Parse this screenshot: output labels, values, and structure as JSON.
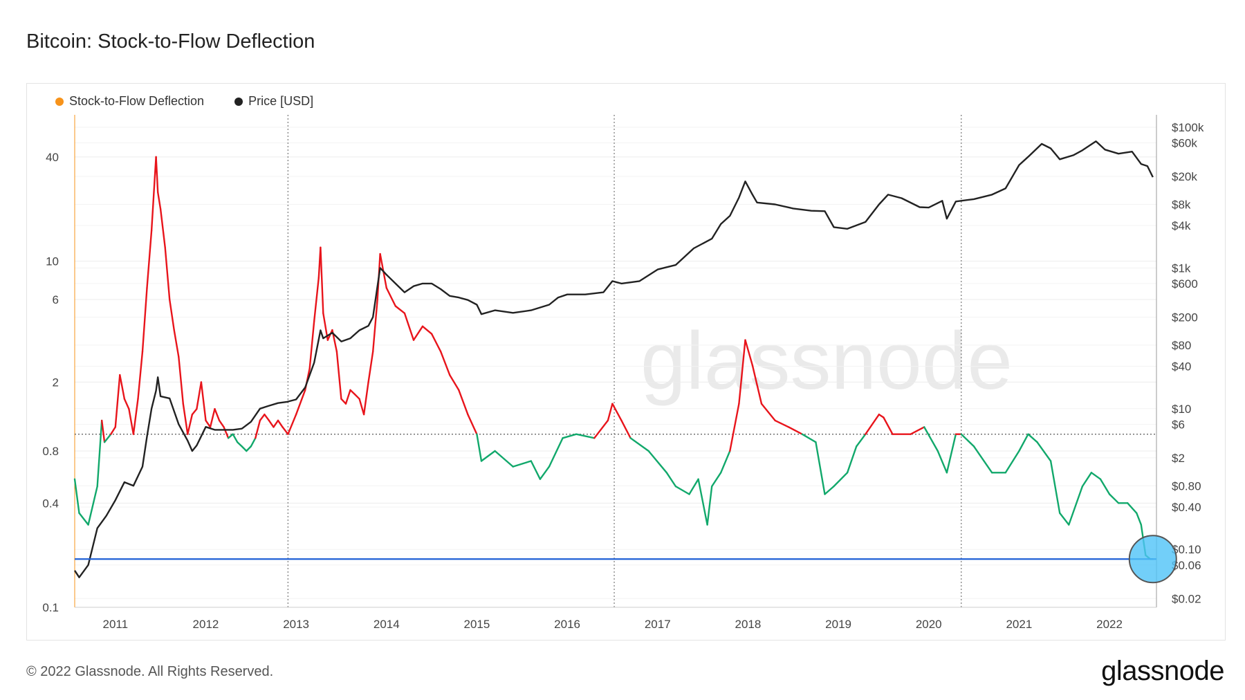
{
  "title": "Bitcoin: Stock-to-Flow Deflection",
  "footer": "© 2022 Glassnode. All Rights Reserved.",
  "brand": "glassnode",
  "watermark": "glassnode",
  "colors": {
    "deflection_above": "#e8141b",
    "deflection_below": "#11a86b",
    "price": "#222222",
    "legend_deflection": "#f7931a",
    "baseline": "#1f5fd6",
    "highlight": "#4fc3f7"
  },
  "chart_data": {
    "type": "line",
    "title": "Bitcoin: Stock-to-Flow Deflection",
    "legend": [
      "Stock-to-Flow Deflection",
      "Price [USD]"
    ],
    "legend_placement": "top-left",
    "x_ticks": [
      "2011",
      "2012",
      "2013",
      "2014",
      "2015",
      "2016",
      "2017",
      "2018",
      "2019",
      "2020",
      "2021",
      "2022"
    ],
    "x_range": [
      2010.55,
      2022.52
    ],
    "y_left": {
      "scale": "log",
      "range": [
        0.1,
        70
      ],
      "ticks": [
        "0.1",
        "0.4",
        "0.8",
        "2",
        "6",
        "10",
        "40"
      ]
    },
    "y_right": {
      "scale": "log",
      "range": [
        0.015,
        150000
      ],
      "ticks": [
        "$0.02",
        "$0.06",
        "$0.10",
        "$0.40",
        "$0.80",
        "$2",
        "$6",
        "$10",
        "$40",
        "$80",
        "$200",
        "$600",
        "$1k",
        "$4k",
        "$8k",
        "$20k",
        "$60k",
        "$100k"
      ]
    },
    "reference_line": 1,
    "baseline_value": 0.19,
    "halving_dates": [
      2012.91,
      2016.52,
      2020.36
    ],
    "highlight_point": {
      "x": 2022.48,
      "y": 0.19
    },
    "series": [
      {
        "name": "Stock-to-Flow Deflection",
        "axis": "left",
        "x": [
          2010.55,
          2010.6,
          2010.7,
          2010.8,
          2010.85,
          2010.88,
          2010.95,
          2011.0,
          2011.05,
          2011.1,
          2011.15,
          2011.2,
          2011.25,
          2011.3,
          2011.35,
          2011.4,
          2011.45,
          2011.47,
          2011.5,
          2011.55,
          2011.6,
          2011.65,
          2011.7,
          2011.75,
          2011.8,
          2011.85,
          2011.9,
          2011.95,
          2012.0,
          2012.05,
          2012.1,
          2012.15,
          2012.2,
          2012.25,
          2012.3,
          2012.35,
          2012.4,
          2012.45,
          2012.5,
          2012.55,
          2012.6,
          2012.65,
          2012.7,
          2012.75,
          2012.8,
          2012.85,
          2012.91,
          2013.0,
          2013.1,
          2013.15,
          2013.2,
          2013.25,
          2013.27,
          2013.3,
          2013.35,
          2013.4,
          2013.45,
          2013.5,
          2013.55,
          2013.6,
          2013.65,
          2013.7,
          2013.75,
          2013.8,
          2013.85,
          2013.9,
          2013.93,
          2014.0,
          2014.1,
          2014.2,
          2014.3,
          2014.4,
          2014.5,
          2014.6,
          2014.7,
          2014.8,
          2014.9,
          2015.0,
          2015.05,
          2015.2,
          2015.4,
          2015.6,
          2015.7,
          2015.8,
          2015.95,
          2016.1,
          2016.3,
          2016.45,
          2016.5,
          2016.6,
          2016.7,
          2016.9,
          2017.1,
          2017.2,
          2017.35,
          2017.45,
          2017.55,
          2017.6,
          2017.7,
          2017.8,
          2017.9,
          2017.97,
          2018.05,
          2018.15,
          2018.3,
          2018.45,
          2018.6,
          2018.75,
          2018.85,
          2018.95,
          2019.1,
          2019.2,
          2019.3,
          2019.45,
          2019.5,
          2019.6,
          2019.8,
          2019.95,
          2020.1,
          2020.2,
          2020.3,
          2020.36,
          2020.5,
          2020.7,
          2020.85,
          2021.0,
          2021.1,
          2021.2,
          2021.35,
          2021.45,
          2021.55,
          2021.7,
          2021.8,
          2021.9,
          2022.0,
          2022.1,
          2022.2,
          2022.3,
          2022.35,
          2022.4,
          2022.45,
          2022.48
        ],
        "values": [
          0.55,
          0.35,
          0.3,
          0.5,
          1.2,
          0.9,
          1.0,
          1.1,
          2.2,
          1.6,
          1.4,
          1.0,
          1.6,
          3.0,
          7.0,
          15.0,
          40.0,
          25.0,
          20.0,
          12.0,
          6.0,
          4.0,
          2.8,
          1.5,
          1.0,
          1.3,
          1.4,
          2.0,
          1.2,
          1.1,
          1.4,
          1.2,
          1.1,
          0.95,
          1.0,
          0.9,
          0.85,
          0.8,
          0.85,
          0.95,
          1.2,
          1.3,
          1.2,
          1.1,
          1.2,
          1.1,
          1.0,
          1.3,
          1.8,
          2.4,
          4.5,
          8.0,
          12.0,
          5.0,
          3.5,
          4.0,
          3.0,
          1.6,
          1.5,
          1.8,
          1.7,
          1.6,
          1.3,
          2.0,
          3.0,
          6.0,
          11.0,
          7.0,
          5.5,
          5.0,
          3.5,
          4.2,
          3.8,
          3.0,
          2.2,
          1.8,
          1.3,
          1.0,
          0.7,
          0.8,
          0.65,
          0.7,
          0.55,
          0.65,
          0.95,
          1.0,
          0.95,
          1.2,
          1.5,
          1.2,
          0.95,
          0.8,
          0.6,
          0.5,
          0.45,
          0.55,
          0.3,
          0.5,
          0.6,
          0.8,
          1.5,
          3.5,
          2.5,
          1.5,
          1.2,
          1.1,
          1.0,
          0.9,
          0.45,
          0.5,
          0.6,
          0.85,
          1.0,
          1.3,
          1.25,
          1.0,
          1.0,
          1.1,
          0.8,
          0.6,
          1.0,
          1.0,
          0.85,
          0.6,
          0.6,
          0.8,
          1.0,
          0.9,
          0.7,
          0.35,
          0.3,
          0.5,
          0.6,
          0.55,
          0.45,
          0.4,
          0.4,
          0.35,
          0.3,
          0.2,
          0.19,
          0.19
        ]
      },
      {
        "name": "Price [USD]",
        "axis": "right",
        "x": [
          2010.55,
          2010.6,
          2010.7,
          2010.8,
          2010.9,
          2011.0,
          2011.1,
          2011.2,
          2011.3,
          2011.35,
          2011.4,
          2011.45,
          2011.47,
          2011.5,
          2011.6,
          2011.7,
          2011.8,
          2011.85,
          2011.9,
          2012.0,
          2012.1,
          2012.2,
          2012.3,
          2012.4,
          2012.5,
          2012.6,
          2012.7,
          2012.8,
          2012.9,
          2013.0,
          2013.1,
          2013.2,
          2013.27,
          2013.3,
          2013.4,
          2013.5,
          2013.6,
          2013.7,
          2013.8,
          2013.85,
          2013.93,
          2014.0,
          2014.1,
          2014.2,
          2014.3,
          2014.4,
          2014.5,
          2014.6,
          2014.7,
          2014.8,
          2014.9,
          2015.0,
          2015.05,
          2015.2,
          2015.4,
          2015.6,
          2015.8,
          2015.9,
          2016.0,
          2016.2,
          2016.4,
          2016.5,
          2016.6,
          2016.8,
          2017.0,
          2017.2,
          2017.4,
          2017.6,
          2017.7,
          2017.8,
          2017.9,
          2017.97,
          2018.05,
          2018.1,
          2018.3,
          2018.5,
          2018.7,
          2018.85,
          2018.95,
          2019.1,
          2019.3,
          2019.45,
          2019.55,
          2019.7,
          2019.9,
          2020.0,
          2020.15,
          2020.2,
          2020.3,
          2020.5,
          2020.7,
          2020.85,
          2021.0,
          2021.1,
          2021.25,
          2021.35,
          2021.45,
          2021.6,
          2021.7,
          2021.85,
          2021.95,
          2022.1,
          2022.25,
          2022.35,
          2022.42,
          2022.48
        ],
        "values": [
          0.05,
          0.04,
          0.06,
          0.2,
          0.3,
          0.5,
          0.9,
          0.8,
          1.5,
          4.0,
          10.0,
          18.0,
          28.0,
          15.0,
          14.0,
          6.0,
          3.5,
          2.5,
          3.0,
          5.5,
          5.0,
          5.0,
          5.0,
          5.2,
          6.5,
          10.0,
          11.0,
          12.0,
          12.5,
          13.5,
          20.0,
          45.0,
          130.0,
          100.0,
          120.0,
          90.0,
          100.0,
          130.0,
          150.0,
          200.0,
          1000.0,
          800.0,
          600.0,
          450.0,
          550.0,
          600.0,
          600.0,
          500.0,
          400.0,
          380.0,
          350.0,
          300.0,
          220.0,
          250.0,
          230.0,
          250.0,
          300.0,
          380.0,
          420.0,
          420.0,
          450.0,
          650.0,
          600.0,
          650.0,
          950.0,
          1100.0,
          1900.0,
          2600.0,
          4200.0,
          5500.0,
          10000.0,
          17000.0,
          11000.0,
          8500.0,
          8000.0,
          7000.0,
          6500.0,
          6400.0,
          3800.0,
          3600.0,
          4500.0,
          8000.0,
          11000.0,
          9800.0,
          7300.0,
          7200.0,
          9000.0,
          5000.0,
          8800.0,
          9500.0,
          11000.0,
          13500.0,
          29000.0,
          38000.0,
          58000.0,
          50000.0,
          35000.0,
          40000.0,
          47000.0,
          63000.0,
          48000.0,
          42000.0,
          45000.0,
          30000.0,
          28000.0,
          19500.0
        ]
      }
    ]
  }
}
